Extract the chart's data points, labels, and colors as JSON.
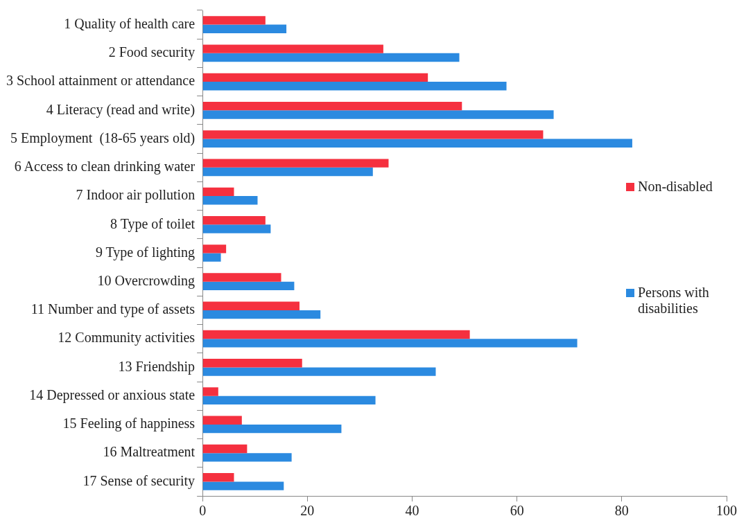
{
  "chart_data": {
    "type": "bar",
    "orientation": "horizontal",
    "categories": [
      "1 Quality of health care",
      "2 Food security",
      "3 School attainment or attendance",
      "4 Literacy (read and write)",
      "5 Employment  (18-65 years old)",
      "6 Access to clean drinking water",
      "7 Indoor air pollution",
      "8 Type of toilet",
      "9 Type of lighting",
      "10 Overcrowding",
      "11 Number and type of assets",
      "12 Community activities",
      "13 Friendship",
      "14 Depressed or anxious state",
      "15 Feeling of happiness",
      "16 Maltreatment",
      "17 Sense of security"
    ],
    "series": [
      {
        "name": "Non-disabled",
        "color": "#f5303f",
        "values": [
          12,
          34.5,
          43,
          49.5,
          65,
          35.5,
          6,
          12,
          4.5,
          15,
          18.5,
          51,
          19,
          3,
          7.5,
          8.5,
          6
        ]
      },
      {
        "name": "Persons with disabilities",
        "color": "#2b8ae0",
        "values": [
          16,
          49,
          58,
          67,
          82,
          32.5,
          10.5,
          13,
          3.5,
          17.5,
          22.5,
          71.5,
          44.5,
          33,
          26.5,
          17,
          15.5
        ]
      }
    ],
    "xlim": [
      0,
      100
    ],
    "xticks": [
      0,
      20,
      40,
      60,
      80,
      100
    ],
    "grid": false,
    "legend": "right"
  }
}
